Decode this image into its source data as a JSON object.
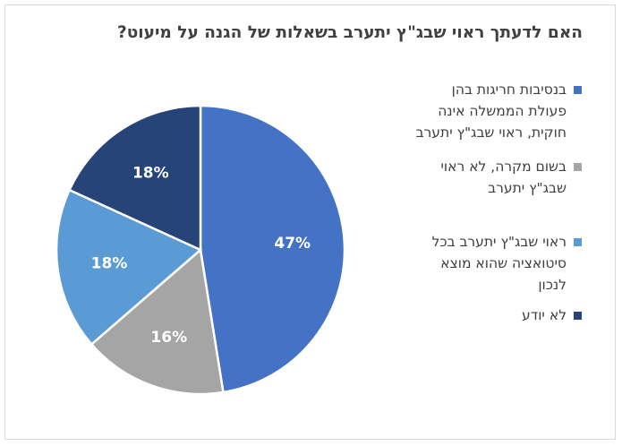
{
  "chart_data": {
    "type": "pie",
    "title": "האם לדעתך ראוי שבג\"ץ יתערב בשאלות של הגנה על מיעוט?",
    "categories": [
      "בנסיבות חריגות בהן פעולת הממשלה אינה חוקית, ראוי שבג\"ץ יתערב",
      "בשום מקרה, לא ראוי שבג\"ץ יתערב",
      "ראוי שבג\"ץ יתערב בכל סיטואציה שהוא מוצא לנכון",
      "לא יודע"
    ],
    "values": [
      47,
      16,
      18,
      18
    ],
    "labels": [
      "47%",
      "16%",
      "18%",
      "18%"
    ],
    "colors": [
      "#4472c4",
      "#a5a5a5",
      "#5b9bd5",
      "#264478"
    ],
    "legend_position": "right"
  }
}
